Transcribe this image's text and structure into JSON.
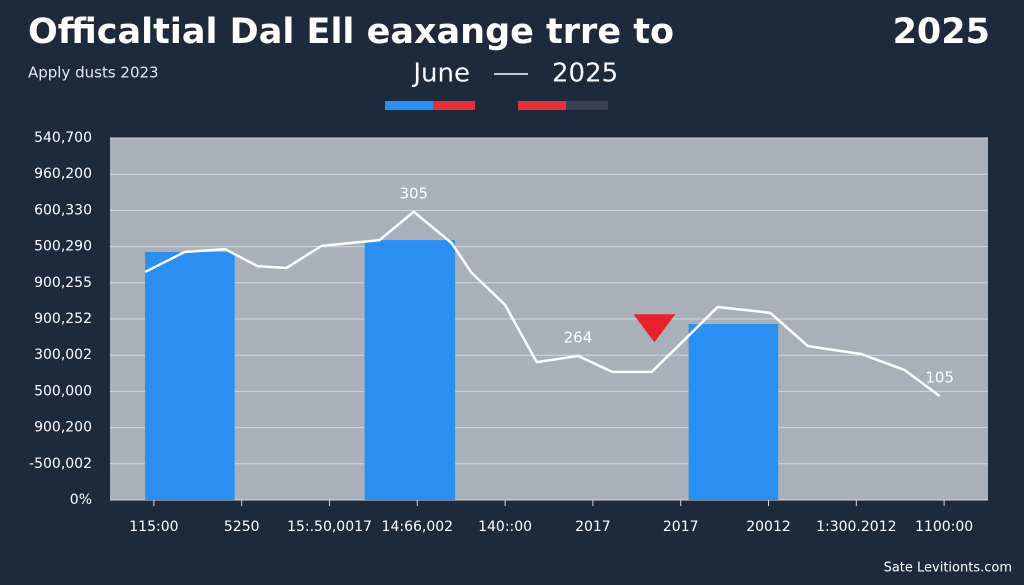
{
  "chart_data": {
    "type": "bar_line",
    "title": "Officaltial Dal Ell eaxange trre to",
    "title_right": "2025",
    "subtitle": "Apply dusts 2023",
    "period_start": "June",
    "period_end": "2025",
    "footer": "Sate Levitionts.com",
    "categories": [
      "115:00",
      "5250",
      "15:.50,0017",
      "14:66,002",
      "140::00",
      "2017",
      "2017",
      "20012",
      "1:300.2012",
      "1100:00"
    ],
    "xlim": [
      -0.5,
      9.5
    ],
    "ylim": [
      0,
      10
    ],
    "yticks": [
      {
        "value": 0,
        "label": "0%"
      },
      {
        "value": 1,
        "label": "-500,002"
      },
      {
        "value": 2,
        "label": "900,200"
      },
      {
        "value": 3,
        "label": "500,000"
      },
      {
        "value": 4,
        "label": "300,002"
      },
      {
        "value": 5,
        "label": "900,252"
      },
      {
        "value": 6,
        "label": "900,255"
      },
      {
        "value": 7,
        "label": "500,290"
      },
      {
        "value": 8,
        "label": "600,330"
      },
      {
        "value": 9,
        "label": "960,200"
      },
      {
        "value": 10,
        "label": "540,700"
      }
    ],
    "grid": true,
    "bars": {
      "color": "#2a8ff0",
      "x_start": [
        -0.1,
        2.4,
        6.09
      ],
      "x_end": [
        0.92,
        3.43,
        7.11
      ],
      "values": [
        6.85,
        7.18,
        4.86
      ]
    },
    "line": {
      "color": "#ffffff",
      "x": [
        -0.1,
        0.35,
        0.81,
        1.18,
        1.51,
        1.91,
        2.57,
        2.96,
        3.39,
        3.62,
        4.0,
        4.36,
        4.83,
        5.22,
        5.67,
        6.1,
        6.42,
        7.02,
        7.45,
        8.06,
        8.55,
        8.95
      ],
      "values": [
        6.3,
        6.85,
        6.93,
        6.46,
        6.41,
        7.02,
        7.18,
        7.96,
        7.1,
        6.27,
        5.39,
        3.81,
        3.98,
        3.54,
        3.54,
        4.56,
        5.33,
        5.17,
        4.25,
        4.03,
        3.59,
        2.87
      ]
    },
    "annotations": [
      {
        "text": "305",
        "point": 7
      },
      {
        "text": "264",
        "point": 12
      },
      {
        "text": "105",
        "point": 21
      }
    ],
    "marker": {
      "color": "#e8202a",
      "x": 5.7,
      "value": 4.8
    },
    "legend": [
      {
        "colors": [
          "#2a8ff0",
          "#e8303a"
        ]
      },
      {
        "colors": [
          "#e8303a",
          "#3a4250"
        ]
      }
    ]
  }
}
